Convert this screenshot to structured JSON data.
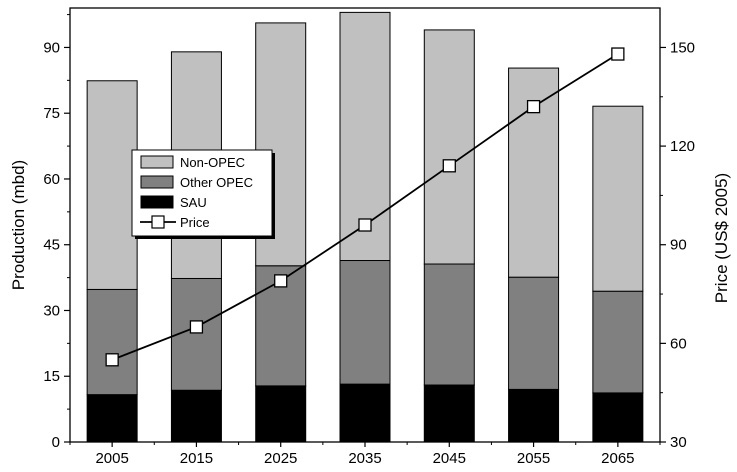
{
  "chart_data": {
    "type": "bar",
    "stacked": true,
    "categories": [
      "2005",
      "2015",
      "2025",
      "2035",
      "2045",
      "2055",
      "2065"
    ],
    "series": [
      {
        "name": "SAU",
        "axis": "left",
        "color": "#000000",
        "values": [
          10.8,
          11.8,
          12.8,
          13.2,
          13.0,
          12.0,
          11.2
        ]
      },
      {
        "name": "Other OPEC",
        "axis": "left",
        "color": "#808080",
        "values": [
          24.0,
          25.5,
          27.4,
          28.2,
          27.6,
          25.6,
          23.2
        ]
      },
      {
        "name": "Non-OPEC",
        "axis": "left",
        "color": "#c0c0c0",
        "values": [
          47.6,
          51.7,
          55.4,
          56.6,
          53.4,
          47.7,
          42.2
        ]
      },
      {
        "name": "Price",
        "axis": "right",
        "type": "line",
        "marker": "square",
        "color": "#000000",
        "values": [
          55,
          65,
          79,
          96,
          114,
          132,
          148
        ]
      }
    ],
    "y_left": {
      "label": "Production (mbd)",
      "ticks": [
        0,
        15,
        30,
        45,
        60,
        75,
        90
      ],
      "tick_labels": [
        "0",
        "15",
        "30",
        "45",
        "60",
        "75",
        "90"
      ],
      "lim": [
        0,
        99
      ]
    },
    "y_right": {
      "label": "Price (US$ 2005)",
      "ticks": [
        30,
        60,
        90,
        120,
        150
      ],
      "tick_labels": [
        "30",
        "60",
        "90",
        "120",
        "150"
      ],
      "lim": [
        30,
        162
      ]
    },
    "legend": {
      "placement": "center-left",
      "entries": [
        "Non-OPEC",
        "Other OPEC",
        "SAU",
        "Price"
      ]
    },
    "grid": false
  }
}
